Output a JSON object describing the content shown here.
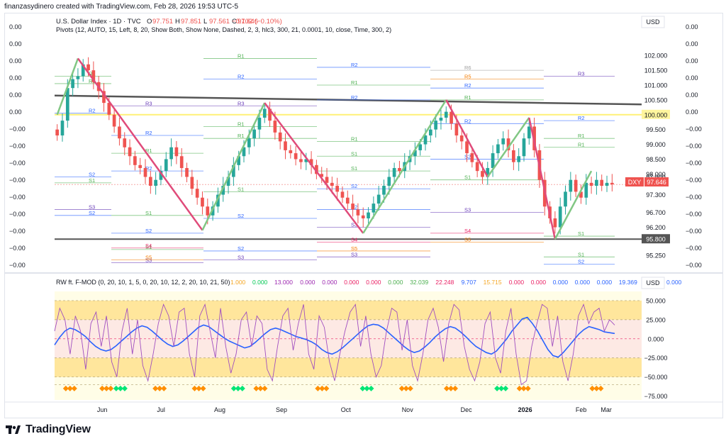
{
  "header": {
    "created_line": "finanzasydinero created with TradingView.com, Feb 28, 2026 19:53 UTC-5"
  },
  "legend": {
    "symbol": "U.S. Dollar Index · 1D · TVC",
    "ohlc": [
      {
        "k": "O",
        "v": "97.751"
      },
      {
        "k": "H",
        "v": "97.851"
      },
      {
        "k": "L",
        "v": "97.561"
      },
      {
        "k": "C",
        "v": "97.646"
      }
    ],
    "change": "−0.102 (−0.10%)",
    "pivots": "Pivots (12, AUTO, 15, Left, 8, 20, Show Both, Show None, Dashed, 2, 3, hlc3, 300, 21, 0.0001, 10, close, Time, 300, 2)",
    "indicator_name": "RW ft. F-MOD (0, 20, 10, 1, 5, 0, 20, 10, 12, 2, 20, 10, 21, 50)",
    "indicator_values": [
      {
        "v": "1.000",
        "c": "#f5a623"
      },
      {
        "v": "0.000",
        "c": "#00c853"
      },
      {
        "v": "13.000",
        "c": "#9c27b0"
      },
      {
        "v": "0.000",
        "c": "#9c27b0"
      },
      {
        "v": "0.000",
        "c": "#9c27b0"
      },
      {
        "v": "0.000",
        "c": "#e91e63"
      },
      {
        "v": "0.000",
        "c": "#e91e63"
      },
      {
        "v": "0.000",
        "c": "#4caf50"
      },
      {
        "v": "32.039",
        "c": "#4caf50"
      },
      {
        "v": "22.248",
        "c": "#e91e63"
      },
      {
        "v": "9.707",
        "c": "#2962ff"
      },
      {
        "v": "15.715",
        "c": "#f5a623"
      },
      {
        "v": "0.000",
        "c": "#e91e63"
      },
      {
        "v": "0.000",
        "c": "#e91e63"
      },
      {
        "v": "0.000",
        "c": "#2962ff"
      },
      {
        "v": "0.000",
        "c": "#2962ff"
      },
      {
        "v": "0.000",
        "c": "#2962ff"
      },
      {
        "v": "19.369",
        "c": "#2962ff"
      },
      {
        "v": "0.000",
        "c": "#2962ff"
      },
      {
        "v": "0.000",
        "c": "#2962ff"
      }
    ]
  },
  "currency_label": "USD",
  "symbol_badge": "DXY",
  "last_price": "97.646",
  "colors": {
    "up": "#26a69a",
    "down": "#ef5350",
    "zigzag_up": "#81c784",
    "zigzag_down": "#e04b7a",
    "resistance_line": "#555555",
    "highlight_level": "#fff59d",
    "osc_blue": "#2962ff"
  },
  "chart_data": [
    {
      "type": "candlestick",
      "title": "U.S. Dollar Index · 1D · TVC",
      "price_axis_ticks": [
        "102.000",
        "101.500",
        "101.000",
        "100.500",
        "100.000",
        "99.500",
        "99.000",
        "98.500",
        "98.000",
        "97.900",
        "97.300",
        "96.700",
        "96.200",
        "95.800",
        "95.250"
      ],
      "left_axis_ticks": [
        "0.00",
        "0.00",
        "0.00",
        "0.00",
        "0.00",
        "0.00",
        "−0.00",
        "−0.00",
        "−0.00",
        "−0.00",
        "−0.00",
        "−0.00",
        "−0.00",
        "−0.00",
        "−0.00"
      ],
      "right_axis_ticks": [
        "0.00",
        "0.00",
        "0.00",
        "0.00",
        "0.00",
        "0.00",
        "−0.00",
        "−0.00",
        "−0.00",
        "−0.00",
        "−0.00",
        "−0.00",
        "−0.00",
        "−0.00",
        "−0.00"
      ],
      "time_axis_ticks": [
        "Jun",
        "Jul",
        "Aug",
        "Sep",
        "Oct",
        "Nov",
        "Dec",
        "2026",
        "Feb",
        "Mar"
      ],
      "highlighted_levels": [
        "100.000",
        "95.800"
      ],
      "ylim": [
        94.8,
        102.7
      ],
      "closes": [
        99.3,
        99.8,
        100.9,
        101.2,
        101.3,
        101.7,
        101.5,
        101.1,
        100.8,
        100.4,
        100.0,
        99.6,
        99.2,
        98.9,
        98.6,
        98.3,
        98.2,
        97.9,
        97.6,
        97.8,
        98.1,
        98.5,
        98.9,
        98.6,
        98.2,
        97.9,
        97.5,
        97.2,
        96.9,
        96.6,
        96.9,
        97.3,
        97.6,
        97.9,
        98.3,
        98.6,
        98.9,
        99.2,
        99.5,
        99.9,
        100.2,
        99.8,
        99.4,
        99.1,
        98.8,
        98.7,
        98.5,
        98.4,
        98.5,
        98.3,
        98.0,
        97.9,
        97.7,
        97.6,
        97.4,
        97.2,
        97.0,
        96.8,
        96.6,
        96.5,
        96.7,
        97.0,
        97.3,
        97.6,
        97.9,
        98.2,
        98.1,
        98.4,
        98.6,
        98.8,
        99.0,
        99.3,
        99.5,
        99.8,
        99.9,
        100.1,
        99.7,
        99.3,
        99.1,
        98.7,
        98.4,
        98.1,
        97.9,
        98.2,
        98.7,
        99.0,
        99.2,
        98.8,
        98.4,
        98.6,
        99.2,
        99.6,
        98.8,
        97.8,
        96.9,
        96.5,
        96.2,
        96.9,
        97.4,
        97.8,
        97.4,
        97.2,
        97.7,
        97.6,
        97.8,
        97.6,
        97.7,
        97.65
      ],
      "series": [
        {
          "name": "S1",
          "values": [
            97.8,
            96.6,
            97.4,
            96.6,
            97.5,
            97.8,
            95.9
          ]
        },
        {
          "name": "R1",
          "values": [
            101.3,
            100.3,
            99.6,
            100.9,
            99.0,
            99.2
          ]
        }
      ]
    },
    {
      "type": "line",
      "title": "RW ft. F-MOD",
      "axis_ticks": [
        "50.000",
        "25.000",
        "0.000",
        "−25.000",
        "−50.000",
        "−75.000"
      ],
      "ylim": [
        -80,
        62
      ],
      "series": [
        {
          "name": "blue",
          "values": [
            -8,
            2,
            10,
            14,
            12,
            8,
            3,
            -4,
            -10,
            -14,
            -16,
            -14,
            -9,
            -3,
            3,
            9,
            14,
            17,
            15,
            10,
            4,
            -2,
            -7,
            -10,
            -8,
            -3,
            3,
            9,
            15,
            18,
            16,
            11,
            6,
            1,
            -3,
            -6,
            -9,
            -12,
            -10,
            -5,
            1,
            7,
            12,
            14,
            12,
            9,
            6,
            3,
            1,
            -1,
            -4,
            -8,
            -14,
            -18,
            -20,
            -17,
            -12,
            -6,
            0,
            6,
            12,
            17,
            19,
            18,
            14,
            8,
            2,
            -4,
            -10,
            -15,
            -18,
            -16,
            -11,
            -5,
            2,
            8,
            13,
            16,
            14,
            9,
            3,
            -4,
            -10,
            -14,
            -18,
            -20,
            -16,
            -8,
            0,
            10,
            18,
            26,
            28,
            20,
            10,
            -2,
            -14,
            -22,
            -24,
            -18,
            -10,
            -2,
            6,
            12,
            16,
            14,
            12,
            9,
            8,
            7
          ]
        },
        {
          "name": "purple",
          "values": [
            10,
            40,
            25,
            -20,
            30,
            10,
            -40,
            20,
            35,
            -10,
            30,
            -30,
            -50,
            10,
            40,
            -20,
            25,
            -35,
            -55,
            -20,
            20,
            45,
            30,
            -10,
            35,
            40,
            -20,
            -50,
            30,
            45,
            10,
            -25,
            40,
            -10,
            -45,
            -20,
            25,
            35,
            -10,
            30,
            20,
            -40,
            -55,
            -10,
            30,
            40,
            -15,
            20,
            45,
            -20,
            -40,
            30,
            15,
            -30,
            -55,
            -20,
            10,
            35,
            45,
            -10,
            30,
            -20,
            -50,
            -35,
            10,
            40,
            35,
            -15,
            25,
            -35,
            -55,
            -20,
            25,
            40,
            15,
            -30,
            20,
            45,
            38,
            -10,
            -40,
            -55,
            -30,
            20,
            35,
            -25,
            -45,
            10,
            40,
            -20,
            -60,
            -55,
            -10,
            20,
            45,
            40,
            -10,
            30,
            -30,
            -55,
            -20,
            30,
            45,
            20,
            35,
            40,
            10,
            25,
            18
          ]
        }
      ],
      "markers_positions": [
        0.02,
        0.085,
        0.11,
        0.18,
        0.25,
        0.32,
        0.36,
        0.47,
        0.55,
        0.62,
        0.7,
        0.79,
        0.83,
        0.96
      ]
    }
  ]
}
